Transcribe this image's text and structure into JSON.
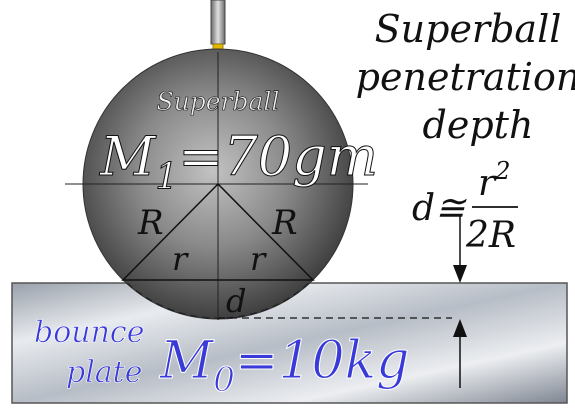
{
  "ball": {
    "label": "Superball",
    "mass_symbol": "M",
    "mass_subscript": "1",
    "mass_value": "=70gm",
    "radius_left": "R",
    "radius_right": "R",
    "chord_left": "r",
    "chord_right": "r"
  },
  "plate": {
    "label_line1": "bounce",
    "label_line2": "plate",
    "mass_symbol": "M",
    "mass_subscript": "0",
    "mass_value": "=10kg"
  },
  "penetration": {
    "title_line1": "Superball",
    "title_line2": "penetration",
    "title_line3": "depth",
    "d_label": "d",
    "formula_lhs": "d≅",
    "formula_num": "r",
    "formula_num_exp": "2",
    "formula_den": "2R"
  },
  "colors": {
    "ball_dark": "#2f2f2f",
    "ball_light": "#b8b8b8",
    "plate_light": "#e6e9ee",
    "plate_dark": "#7d8591",
    "label_blue": "#3a3ad8",
    "probe_tip": "#e3b800"
  }
}
